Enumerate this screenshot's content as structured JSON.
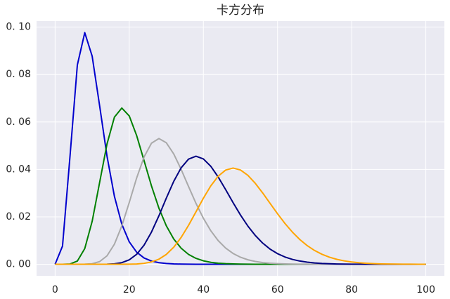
{
  "chart_data": {
    "type": "line",
    "title": "卡方分布",
    "x": [
      0,
      2,
      4,
      6,
      8,
      10,
      12,
      14,
      16,
      18,
      20,
      22,
      24,
      26,
      28,
      30,
      32,
      34,
      36,
      38,
      40,
      42,
      44,
      46,
      48,
      50,
      52,
      54,
      56,
      58,
      60,
      62,
      64,
      66,
      68,
      70,
      72,
      74,
      76,
      78,
      80,
      82,
      84,
      86,
      88,
      90,
      92,
      94,
      96,
      98,
      100
    ],
    "series": [
      {
        "color": "#0000cd",
        "values": [
          0,
          0.00766,
          0.04511,
          0.08402,
          0.09768,
          0.08773,
          0.06693,
          0.04561,
          0.02863,
          0.01687,
          0.00946,
          0.00509,
          0.00265,
          0.00134,
          0.00067,
          0.00032,
          0.00015,
          7e-05,
          3e-05,
          2e-05,
          1e-05,
          0,
          0,
          0,
          0,
          0,
          0,
          0,
          0,
          0,
          0,
          0,
          0,
          0,
          0,
          0,
          0,
          0,
          0,
          0,
          0,
          0,
          0,
          0,
          0,
          0,
          0,
          0,
          0,
          0,
          0
        ]
      },
      {
        "color": "#008000",
        "values": [
          0,
          0,
          0.0001,
          0.00135,
          0.00662,
          0.01813,
          0.03442,
          0.05071,
          0.06204,
          0.06588,
          0.06256,
          0.05426,
          0.04368,
          0.03303,
          0.02366,
          0.0162,
          0.01065,
          0.00677,
          0.00416,
          0.00249,
          0.00145,
          0.00083,
          0.00046,
          0.00025,
          0.00014,
          7e-05,
          4e-05,
          2e-05,
          1e-05,
          0,
          0,
          0,
          0,
          0,
          0,
          0,
          0,
          0,
          0,
          0,
          0,
          0,
          0,
          0,
          0,
          0,
          0,
          0,
          0,
          0,
          0
        ]
      },
      {
        "color": "#a9a9a9",
        "values": [
          0,
          0,
          0,
          0,
          3e-05,
          0.00024,
          0.00111,
          0.00355,
          0.00847,
          0.0162,
          0.02605,
          0.0364,
          0.04527,
          0.05107,
          0.05302,
          0.05124,
          0.04653,
          0.04,
          0.03276,
          0.02569,
          0.01938,
          0.01412,
          0.00996,
          0.00683,
          0.00456,
          0.00297,
          0.00189,
          0.00118,
          0.00072,
          0.00043,
          0.00026,
          0.00015,
          9e-05,
          5e-05,
          3e-05,
          1e-05,
          0,
          0,
          0,
          0,
          0,
          0,
          0,
          0,
          0,
          0,
          0,
          0,
          0,
          0,
          0
        ]
      },
      {
        "color": "#000080",
        "values": [
          0,
          0,
          0,
          0,
          0,
          0,
          0,
          4e-05,
          0.0002,
          0.00069,
          0.00187,
          0.0042,
          0.00807,
          0.01359,
          0.02044,
          0.02789,
          0.03496,
          0.04069,
          0.04435,
          0.04558,
          0.04443,
          0.04131,
          0.03678,
          0.03149,
          0.026,
          0.02078,
          0.0161,
          0.01214,
          0.00891,
          0.00638,
          0.00447,
          0.00307,
          0.00206,
          0.00136,
          0.00088,
          0.00056,
          0.00035,
          0.00022,
          0.00013,
          8e-05,
          5e-05,
          3e-05,
          2e-05,
          1e-05,
          0,
          0,
          0,
          0,
          0,
          0,
          0
        ]
      },
      {
        "color": "#ffa500",
        "values": [
          0,
          0,
          0,
          0,
          0,
          0,
          0,
          0,
          0,
          1e-05,
          4e-05,
          0.00013,
          0.00039,
          0.00099,
          0.00215,
          0.00415,
          0.00719,
          0.01133,
          0.01643,
          0.02212,
          0.02787,
          0.03307,
          0.03715,
          0.03972,
          0.04058,
          0.03976,
          0.0375,
          0.03412,
          0.03005,
          0.02566,
          0.0213,
          0.01721,
          0.01357,
          0.01044,
          0.00787,
          0.0058,
          0.0042,
          0.00298,
          0.00208,
          0.00143,
          0.00096,
          0.00064,
          0.00042,
          0.00027,
          0.00017,
          0.00011,
          7e-05,
          4e-05,
          3e-05,
          2e-05,
          1e-05
        ]
      }
    ],
    "xlim": [
      -5,
      105
    ],
    "ylim": [
      -0.00488,
      0.10256
    ],
    "xticks": [
      0,
      20,
      40,
      60,
      80,
      100
    ],
    "yticks": [
      {
        "value": 0,
        "label": "0. 00"
      },
      {
        "value": 0.02,
        "label": "0. 02"
      },
      {
        "value": 0.04,
        "label": "0. 04"
      },
      {
        "value": 0.06,
        "label": "0. 06"
      },
      {
        "value": 0.08,
        "label": "0. 08"
      },
      {
        "value": 0.1,
        "label": "0. 10"
      }
    ],
    "grid": true,
    "background": "#eaeaf2"
  }
}
